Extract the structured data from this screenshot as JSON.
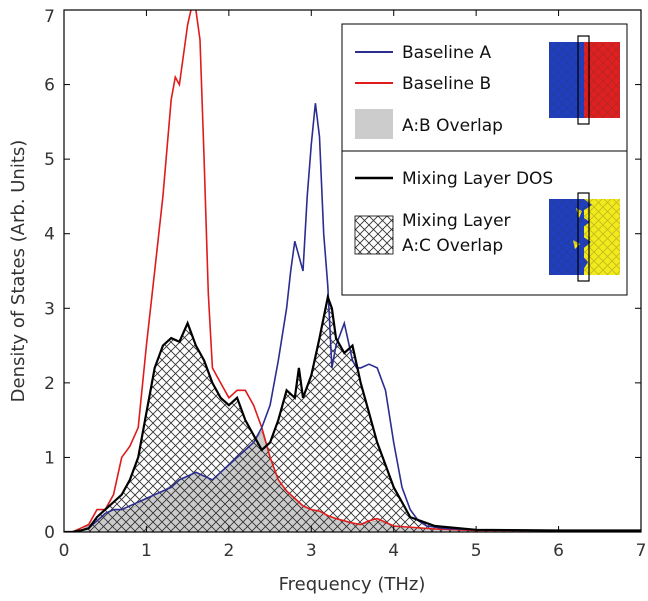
{
  "chart_data": {
    "type": "line",
    "xlabel": "Frequency (THz)",
    "ylabel": "Density of States (Arb. Units)",
    "xlim": [
      0,
      7
    ],
    "ylim": [
      0,
      7
    ],
    "xticks": [
      "0",
      "1",
      "2",
      "3",
      "4",
      "5",
      "6",
      "7"
    ],
    "yticks": [
      "0",
      "1",
      "2",
      "3",
      "4",
      "5",
      "6",
      "7"
    ],
    "grid": false,
    "legend_position": "top-right",
    "legend": {
      "baseline_a": "Baseline A",
      "baseline_b": "Baseline B",
      "ab_overlap": "A:B  Overlap",
      "mixing_dos": "Mixing Layer DOS",
      "ac_overlap_line1": "Mixing Layer",
      "ac_overlap_line2": "A:C Overlap"
    },
    "colors": {
      "baseline_a": "#2b2d8f",
      "baseline_b": "#e01b1b",
      "ab_overlap_fill": "#cccccc",
      "mixing_dos": "#000000",
      "inset_blue": "#1f3fbf",
      "inset_red": "#e02020",
      "inset_yellow": "#f2ea1a"
    },
    "series": [
      {
        "name": "Baseline A",
        "x": [
          0,
          0.1,
          0.2,
          0.3,
          0.4,
          0.5,
          0.6,
          0.7,
          0.8,
          0.9,
          1.0,
          1.1,
          1.2,
          1.3,
          1.4,
          1.5,
          1.6,
          1.7,
          1.8,
          1.9,
          2.0,
          2.1,
          2.2,
          2.3,
          2.4,
          2.5,
          2.6,
          2.7,
          2.75,
          2.8,
          2.9,
          2.95,
          3.0,
          3.05,
          3.1,
          3.15,
          3.2,
          3.25,
          3.3,
          3.4,
          3.5,
          3.55,
          3.6,
          3.7,
          3.8,
          3.9,
          4.0,
          4.1,
          4.2,
          4.3,
          4.4,
          4.6,
          5.0,
          6.0,
          7.0
        ],
        "y": [
          0,
          0,
          0.02,
          0.05,
          0.15,
          0.25,
          0.3,
          0.3,
          0.35,
          0.4,
          0.45,
          0.5,
          0.55,
          0.6,
          0.7,
          0.75,
          0.8,
          0.75,
          0.7,
          0.8,
          0.9,
          1.0,
          1.1,
          1.2,
          1.4,
          1.7,
          2.3,
          3.0,
          3.5,
          3.9,
          3.5,
          4.5,
          5.2,
          5.75,
          5.3,
          4.0,
          3.3,
          2.2,
          2.5,
          2.8,
          2.3,
          2.2,
          2.2,
          2.25,
          2.2,
          1.9,
          1.2,
          0.6,
          0.3,
          0.15,
          0.08,
          0.05,
          0.03,
          0.02,
          0.02
        ]
      },
      {
        "name": "Baseline B",
        "x": [
          0,
          0.1,
          0.2,
          0.3,
          0.4,
          0.5,
          0.6,
          0.7,
          0.8,
          0.9,
          1.0,
          1.1,
          1.2,
          1.3,
          1.35,
          1.4,
          1.5,
          1.55,
          1.6,
          1.65,
          1.7,
          1.75,
          1.8,
          1.9,
          2.0,
          2.1,
          2.2,
          2.3,
          2.4,
          2.5,
          2.6,
          2.7,
          2.8,
          2.9,
          3.0,
          3.1,
          3.2,
          3.3,
          3.4,
          3.5,
          3.6,
          3.7,
          3.8,
          4.0,
          4.5,
          5.0,
          6.0,
          7.0
        ],
        "y": [
          0,
          0,
          0.05,
          0.1,
          0.3,
          0.3,
          0.5,
          1.0,
          1.15,
          1.4,
          2.5,
          3.5,
          4.5,
          5.8,
          6.1,
          6.0,
          6.8,
          7.05,
          7.0,
          6.6,
          5.0,
          3.2,
          2.2,
          2.0,
          1.8,
          1.9,
          1.9,
          1.7,
          1.4,
          1.0,
          0.7,
          0.55,
          0.45,
          0.35,
          0.3,
          0.28,
          0.22,
          0.18,
          0.15,
          0.12,
          0.1,
          0.15,
          0.18,
          0.08,
          0.04,
          0.02,
          0.02,
          0.02
        ]
      },
      {
        "name": "Mixing Layer DOS",
        "x": [
          0,
          0.1,
          0.2,
          0.3,
          0.4,
          0.5,
          0.6,
          0.7,
          0.8,
          0.9,
          1.0,
          1.1,
          1.2,
          1.3,
          1.4,
          1.5,
          1.6,
          1.7,
          1.8,
          1.9,
          2.0,
          2.1,
          2.2,
          2.3,
          2.4,
          2.5,
          2.6,
          2.7,
          2.8,
          2.85,
          2.9,
          3.0,
          3.1,
          3.2,
          3.25,
          3.3,
          3.4,
          3.5,
          3.6,
          3.7,
          3.8,
          3.9,
          4.0,
          4.1,
          4.2,
          4.5,
          5.0,
          6.0,
          7.0
        ],
        "y": [
          0,
          0,
          0.02,
          0.05,
          0.2,
          0.3,
          0.4,
          0.5,
          0.7,
          1.0,
          1.6,
          2.2,
          2.5,
          2.6,
          2.55,
          2.8,
          2.5,
          2.3,
          2.0,
          1.8,
          1.7,
          1.8,
          1.5,
          1.3,
          1.1,
          1.2,
          1.5,
          1.9,
          1.8,
          2.2,
          1.8,
          2.1,
          2.6,
          3.15,
          3.0,
          2.6,
          2.4,
          2.5,
          2.0,
          1.6,
          1.2,
          0.9,
          0.6,
          0.4,
          0.2,
          0.08,
          0.03,
          0.02,
          0.02
        ]
      }
    ],
    "overlap_ab": {
      "name": "A:B  Overlap",
      "x": [
        0,
        0.2,
        0.4,
        0.6,
        0.8,
        1.0,
        1.2,
        1.4,
        1.6,
        1.7,
        1.8,
        1.9,
        2.0,
        2.1,
        2.2,
        2.3,
        2.4,
        2.5,
        2.6,
        2.7,
        2.8,
        2.9,
        3.0,
        3.1,
        3.2,
        3.3,
        3.4,
        3.6,
        3.8,
        4.0,
        4.5,
        5.0,
        6.0,
        7.0
      ],
      "y": [
        0,
        0.02,
        0.15,
        0.3,
        0.3,
        0.45,
        0.55,
        0.7,
        0.8,
        0.75,
        0.7,
        0.8,
        0.9,
        1.0,
        1.1,
        1.2,
        1.35,
        1.0,
        0.7,
        0.55,
        0.45,
        0.35,
        0.3,
        0.28,
        0.22,
        0.18,
        0.15,
        0.1,
        0.15,
        0.08,
        0.04,
        0.02,
        0.02,
        0.02
      ]
    }
  }
}
